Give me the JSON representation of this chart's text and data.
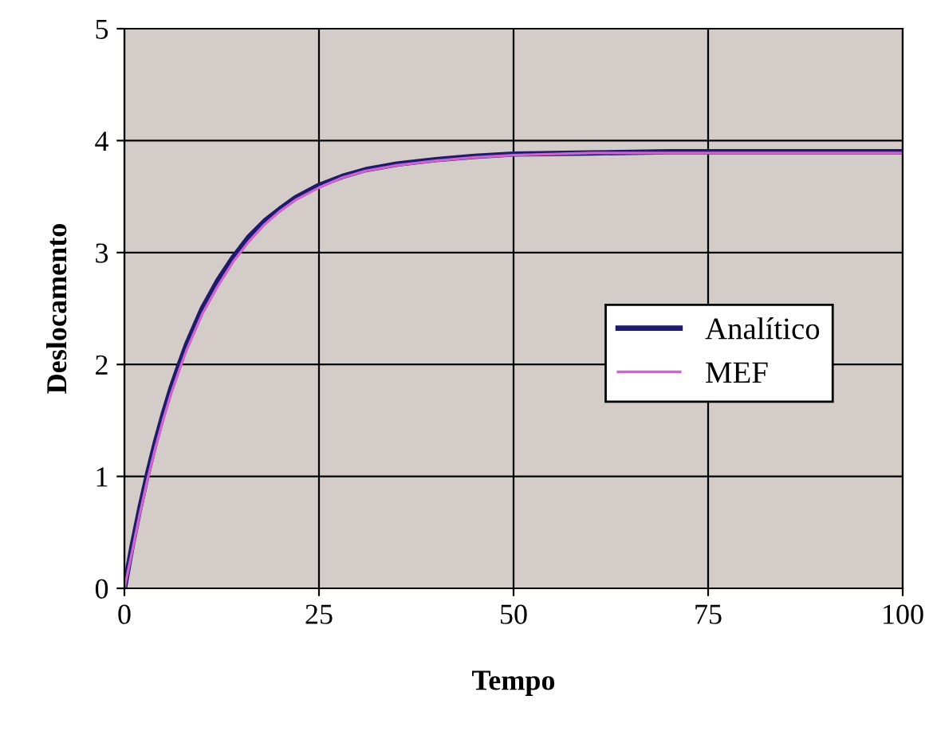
{
  "chart_data": {
    "type": "line",
    "xlabel": "Tempo",
    "ylabel": "Deslocamento",
    "xlim": [
      0,
      100
    ],
    "ylim": [
      0,
      5
    ],
    "xticks": [
      0,
      25,
      50,
      75,
      100
    ],
    "yticks": [
      0,
      1,
      2,
      3,
      4,
      5
    ],
    "grid": true,
    "legend": "right",
    "marker": "none",
    "line_style": "solid",
    "series": [
      {
        "name": "Analítico",
        "color": "#1f1a6e",
        "x": [
          0,
          1,
          2,
          3,
          4,
          5,
          6,
          7,
          8,
          10,
          12,
          14,
          16,
          18,
          20,
          22,
          25,
          28,
          31,
          35,
          40,
          45,
          50,
          60,
          70,
          80,
          90,
          100
        ],
        "values": [
          0,
          0.38,
          0.72,
          1.03,
          1.31,
          1.56,
          1.79,
          1.99,
          2.18,
          2.5,
          2.75,
          2.96,
          3.14,
          3.28,
          3.39,
          3.49,
          3.6,
          3.68,
          3.74,
          3.79,
          3.83,
          3.86,
          3.88,
          3.89,
          3.9,
          3.9,
          3.9,
          3.9
        ]
      },
      {
        "name": "MEF",
        "color": "#cc66cc",
        "x": [
          0,
          1,
          2,
          3,
          4,
          5,
          6,
          7,
          8,
          10,
          12,
          14,
          16,
          18,
          20,
          22,
          25,
          28,
          31,
          35,
          40,
          45,
          50,
          60,
          70,
          80,
          90,
          100
        ],
        "values": [
          0,
          0.33,
          0.67,
          0.98,
          1.26,
          1.51,
          1.74,
          1.94,
          2.13,
          2.45,
          2.7,
          2.92,
          3.1,
          3.25,
          3.37,
          3.47,
          3.58,
          3.67,
          3.73,
          3.78,
          3.82,
          3.85,
          3.87,
          3.89,
          3.89,
          3.89,
          3.89,
          3.89
        ]
      }
    ]
  }
}
